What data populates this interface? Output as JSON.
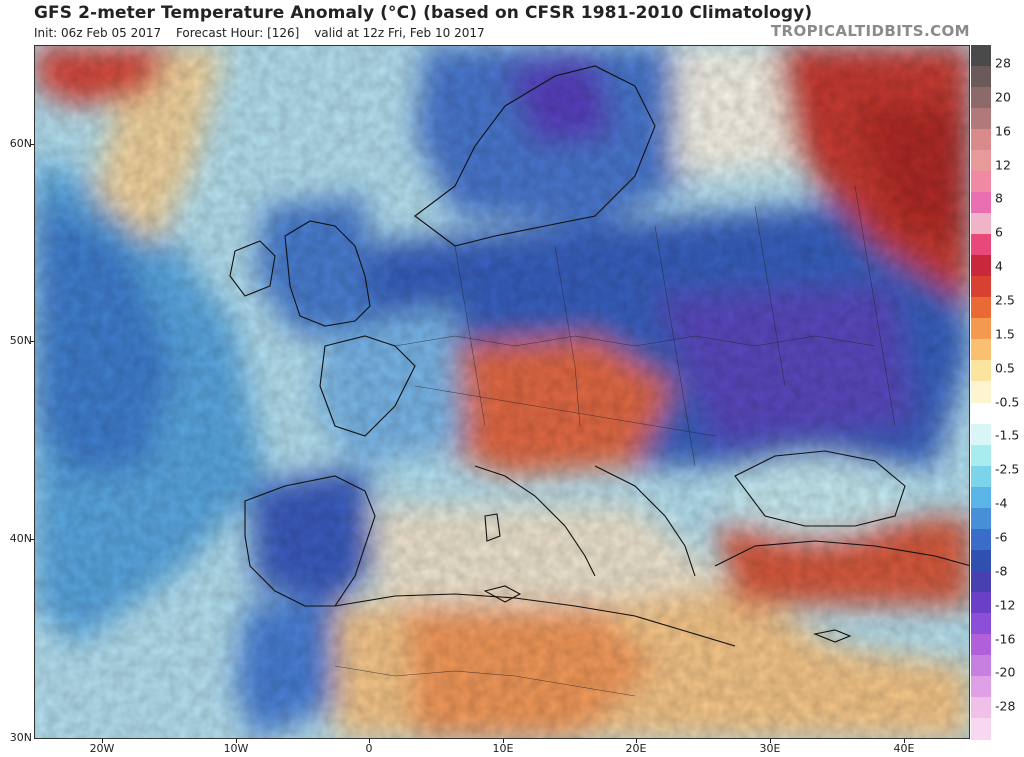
{
  "header": {
    "title": "GFS 2-meter Temperature Anomaly (°C) (based on CFSR 1981-2010 Climatology)",
    "init": "Init: 06z Feb 05 2017",
    "forecast_hour": "Forecast Hour: [126]",
    "valid": "valid at 12z Fri, Feb 10 2017",
    "watermark": "TROPICALTIDBITS.COM"
  },
  "map": {
    "lat_labels": [
      "60N",
      "50N",
      "40N",
      "30N"
    ],
    "lon_labels": [
      "20W",
      "10W",
      "0",
      "10E",
      "20E",
      "30E",
      "40E"
    ]
  },
  "colorbar": {
    "labels": [
      "28",
      "20",
      "16",
      "12",
      "8",
      "6",
      "4",
      "2.5",
      "1.5",
      "0.5",
      "-0.5",
      "-1.5",
      "-2.5",
      "-4",
      "-6",
      "-8",
      "-12",
      "-16",
      "-20",
      "-28"
    ],
    "colors": [
      "#4a4a4a",
      "#6b5a5a",
      "#8c6a6a",
      "#b07a7a",
      "#d98a8a",
      "#e69a9a",
      "#f08aa4",
      "#ea6fb2",
      "#f0b4c8",
      "#e8487a",
      "#c8283a",
      "#d84030",
      "#ea6a36",
      "#f49a4e",
      "#f8c070",
      "#fbe4a0",
      "#fdf4d0",
      "#ffffff",
      "#d8f6f6",
      "#a8ecf0",
      "#7cd4ec",
      "#5ab4e6",
      "#4690d8",
      "#3a6cc8",
      "#3050b0",
      "#4840b0",
      "#6a40c8",
      "#8c50d8",
      "#b060d8",
      "#c880e0",
      "#e0a0e8",
      "#f0c0e8",
      "#f8d8f0"
    ]
  }
}
